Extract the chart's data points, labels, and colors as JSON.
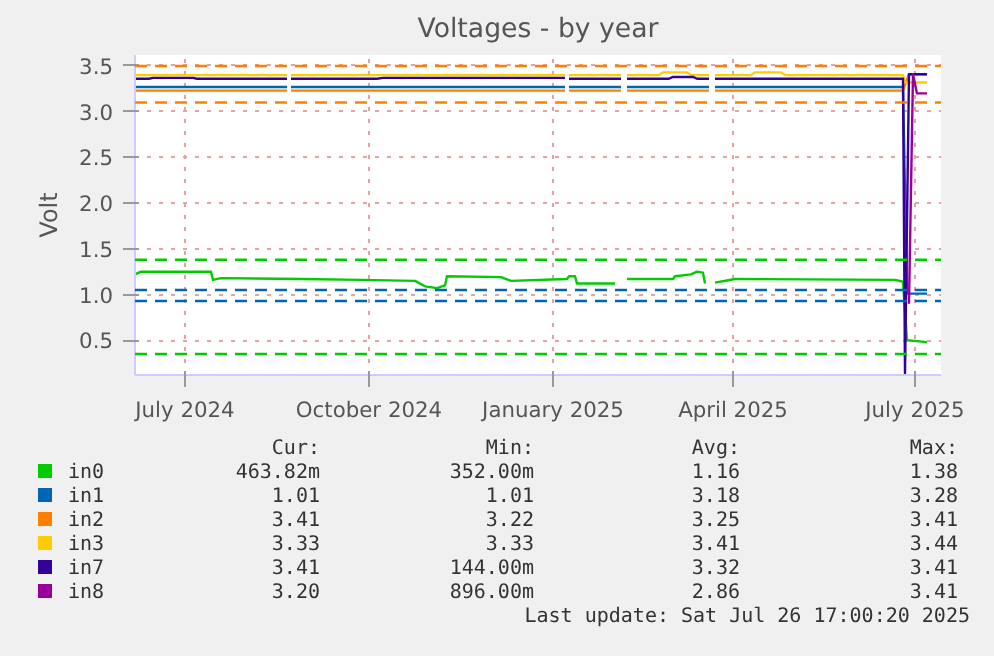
{
  "chart_data": {
    "type": "line",
    "title": "Voltages - by year",
    "ylabel": "Volt",
    "xlim": [
      "2024-06-21",
      "2025-07-29"
    ],
    "xticks": [
      {
        "value": "2024-07-16",
        "label": "July 2024"
      },
      {
        "value": "2024-10-16",
        "label": "October 2024"
      },
      {
        "value": "2025-01-16",
        "label": "January 2025"
      },
      {
        "value": "2025-04-16",
        "label": "April 2025"
      },
      {
        "value": "2025-07-16",
        "label": "July 2025"
      }
    ],
    "ylim": [
      0.12,
      3.62
    ],
    "yticks": [
      0.5,
      {
        "value": 1,
        "label": "1.0"
      },
      1.5,
      {
        "value": 2,
        "label": "2.0"
      },
      2.5,
      {
        "value": 3,
        "label": "3.0"
      },
      3.5
    ],
    "grid": true,
    "legend": "bottom",
    "line_style": "solid",
    "marker": "none",
    "series": [
      {
        "name": "in0",
        "color": "#00cc00",
        "x": [
          "2024-06-21",
          "2024-06-24",
          "2024-07-29",
          "2024-07-30",
          "2024-08-03",
          "2024-09-12",
          "2024-10-12",
          "2024-11-08",
          "2024-11-13",
          "2024-11-19",
          "2024-11-23",
          "2024-11-24",
          "2024-12-21",
          "2024-12-26",
          "2025-01-23",
          "2025-01-24",
          "2025-01-27",
          "2025-01-28",
          "2025-02-16",
          "2025-02-19",
          "2025-02-22",
          "2025-03-17",
          "2025-03-18",
          "2025-03-26",
          "2025-03-29",
          "2025-04-01",
          "2025-04-02",
          "2025-04-04",
          "2025-04-07",
          "2025-04-17",
          "2025-07-06",
          "2025-07-10",
          "2025-07-12",
          "2025-07-17",
          "2025-07-22"
        ],
        "values": [
          1.22,
          1.25,
          1.25,
          1.16,
          1.18,
          1.17,
          1.16,
          1.15,
          1.09,
          1.07,
          1.1,
          1.2,
          1.19,
          1.15,
          1.17,
          1.2,
          1.2,
          1.12,
          1.12,
          null,
          1.17,
          1.17,
          1.2,
          1.22,
          1.25,
          1.24,
          1.12,
          null,
          1.13,
          1.17,
          1.16,
          1.14,
          0.5,
          0.49,
          0.48
        ]
      },
      {
        "name": "in1",
        "color": "#0066b3",
        "x": [
          "2024-06-21",
          "2024-09-05",
          "2024-09-06",
          "2024-09-07",
          "2025-01-22",
          "2025-01-23",
          "2025-01-24",
          "2025-02-19",
          "2025-02-20",
          "2025-02-22",
          "2025-04-04",
          "2025-04-05",
          "2025-04-07",
          "2025-07-10",
          "2025-07-12",
          "2025-07-22"
        ],
        "values": [
          3.27,
          3.27,
          null,
          3.27,
          3.27,
          null,
          3.27,
          3.27,
          null,
          3.27,
          3.27,
          null,
          3.27,
          3.27,
          1.01,
          1.01
        ]
      },
      {
        "name": "in2",
        "color": "#ff8000",
        "x": [
          "2024-06-21",
          "2024-09-05",
          "2024-09-06",
          "2024-09-07",
          "2025-01-22",
          "2025-01-23",
          "2025-01-24",
          "2025-02-19",
          "2025-02-20",
          "2025-02-22",
          "2025-04-04",
          "2025-04-05",
          "2025-04-07",
          "2025-07-10",
          "2025-07-13",
          "2025-07-22"
        ],
        "values": [
          3.23,
          3.23,
          null,
          3.23,
          3.23,
          null,
          3.23,
          3.23,
          null,
          3.23,
          3.23,
          null,
          3.23,
          3.23,
          3.41,
          3.41
        ]
      },
      {
        "name": "in3",
        "color": "#ffcc00",
        "x": [
          "2024-06-21",
          "2024-09-05",
          "2024-09-06",
          "2024-09-07",
          "2025-01-22",
          "2025-01-23",
          "2025-01-24",
          "2025-02-19",
          "2025-02-20",
          "2025-02-22",
          "2025-03-10",
          "2025-03-12",
          "2025-03-24",
          "2025-03-26",
          "2025-04-04",
          "2025-04-05",
          "2025-04-07",
          "2025-04-25",
          "2025-04-27",
          "2025-05-10",
          "2025-05-12",
          "2025-07-10",
          "2025-07-11",
          "2025-07-22"
        ],
        "values": [
          3.4,
          3.4,
          null,
          3.4,
          3.4,
          null,
          3.4,
          3.4,
          null,
          3.4,
          3.4,
          3.43,
          3.43,
          3.4,
          3.4,
          null,
          3.4,
          3.4,
          3.43,
          3.43,
          3.4,
          3.4,
          3.32,
          3.32
        ]
      },
      {
        "name": "in7",
        "color": "#330099",
        "x": [
          "2024-06-21",
          "2024-06-28",
          "2024-06-30",
          "2024-07-20",
          "2024-07-22",
          "2024-09-05",
          "2024-09-06",
          "2024-09-07",
          "2024-10-20",
          "2024-10-23",
          "2025-01-22",
          "2025-01-23",
          "2025-01-24",
          "2025-02-19",
          "2025-02-20",
          "2025-02-22",
          "2025-03-15",
          "2025-03-17",
          "2025-03-27",
          "2025-03-29",
          "2025-04-04",
          "2025-04-05",
          "2025-04-07",
          "2025-07-10",
          "2025-07-11",
          "2025-07-13",
          "2025-07-22"
        ],
        "values": [
          3.36,
          3.36,
          3.37,
          3.37,
          3.36,
          3.36,
          null,
          3.36,
          3.36,
          3.37,
          3.37,
          null,
          3.36,
          3.36,
          null,
          3.36,
          3.36,
          3.38,
          3.38,
          3.36,
          3.36,
          null,
          3.36,
          3.36,
          0.14,
          3.41,
          3.41
        ]
      },
      {
        "name": "in8",
        "color": "#990099",
        "x": [
          "2025-07-13",
          "2025-07-15",
          "2025-07-17",
          "2025-07-22"
        ],
        "values": [
          0.9,
          3.41,
          3.2,
          3.2
        ]
      }
    ],
    "ref_lines": [
      {
        "axis": "y",
        "value": 3.5,
        "color": "#ff8000",
        "line_style": "dashed"
      },
      {
        "axis": "y",
        "value": 3.1,
        "color": "#ff8000",
        "line_style": "dashed"
      },
      {
        "axis": "y",
        "value": 1.38,
        "color": "#00cc00",
        "line_style": "dashed"
      },
      {
        "axis": "y",
        "value": 0.35,
        "color": "#00cc00",
        "line_style": "dashed"
      },
      {
        "axis": "y",
        "value": 1.05,
        "color": "#0066b3",
        "line_style": "dashed"
      },
      {
        "axis": "y",
        "value": 0.93,
        "color": "#0066b3",
        "line_style": "dashed"
      }
    ],
    "annotations": [
      "Cur:",
      "Min:",
      "Avg:",
      "Max:",
      "463.82m",
      "352.00m",
      "1.16",
      "1.38",
      "1.01",
      "1.01",
      "3.18",
      "3.28",
      "3.41",
      "3.22",
      "3.25",
      "3.41",
      "3.33",
      "3.33",
      "3.41",
      "3.44",
      "3.41",
      "144.00m",
      "3.32",
      "3.41",
      "3.20",
      "896.00m",
      "2.86",
      "3.41",
      "Last update: Sat Jul 26 17:00:20 2025"
    ]
  }
}
